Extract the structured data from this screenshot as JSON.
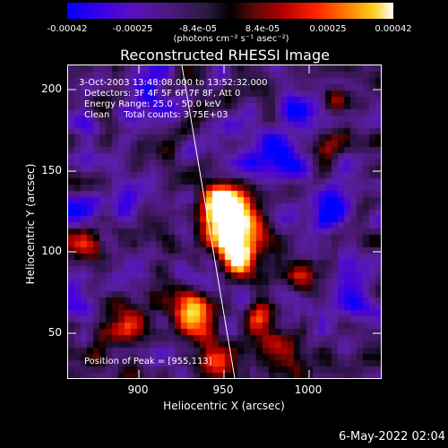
{
  "colorbar": {
    "tick_labels": [
      "-0.00042",
      "-0.00025",
      "-8.4e-05",
      "8.4e-05",
      "0.00025",
      "0.00042"
    ],
    "unit_label": "(photons cm⁻² s⁻¹ asec⁻²)"
  },
  "title": "Reconstructed RHESSI Image",
  "info": {
    "time_range": "3-Oct-2003 13:48:08.000 to 13:52:32.000",
    "detectors": "Detectors: 3F 4F 5F 6F 7F 8F, Att 0",
    "energy_range": "Energy Range: 25.0 - 50.0 keV",
    "clean_counts": "Clean     Total counts: 3.75E+03",
    "peak_position": "Position of Peak = [955,113]"
  },
  "axes": {
    "xlabel": "Heliocentric X (arcsec)",
    "ylabel": "Heliocentric Y (arcsec)",
    "x_ticks": [
      "900",
      "950",
      "1000"
    ],
    "y_ticks": [
      "50",
      "100",
      "150",
      "200"
    ]
  },
  "footer": {
    "date": "6-May-2022 02:04"
  },
  "map": {
    "peak": [
      955,
      113
    ],
    "colors": {
      "min": "#0000ff",
      "zero": "#000000",
      "max": "#ffffff",
      "limb": "#ffffff"
    }
  }
}
